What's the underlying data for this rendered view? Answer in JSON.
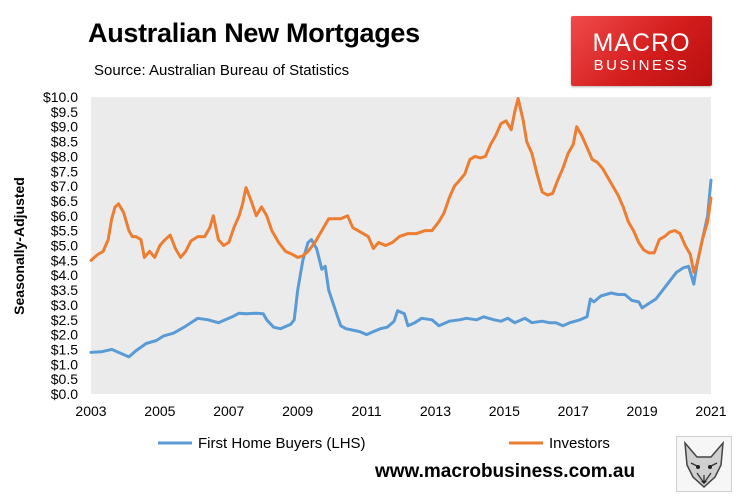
{
  "header": {
    "title": "Australian New Mortgages",
    "subtitle": "Source: Australian Bureau of Statistics"
  },
  "logo": {
    "line1": "MACRO",
    "line2": "BUSINESS",
    "color": "#d82222"
  },
  "footer": {
    "url": "www.macrobusiness.com.au"
  },
  "chart_data": {
    "type": "line",
    "title": "Australian New Mortgages",
    "subtitle": "Source: Australian Bureau of Statistics",
    "ylabel": "Seasonally-Adjusted",
    "xlim": [
      2003,
      2021
    ],
    "ylim": [
      0,
      10
    ],
    "x_ticks": [
      2003,
      2005,
      2007,
      2009,
      2011,
      2013,
      2015,
      2017,
      2019,
      2021
    ],
    "x_tick_labels": [
      "2003",
      "2005",
      "2007",
      "2009",
      "2011",
      "2013",
      "2015",
      "2017",
      "2019",
      "2021"
    ],
    "y_ticks": [
      0,
      0.5,
      1,
      1.5,
      2,
      2.5,
      3,
      3.5,
      4,
      4.5,
      5,
      5.5,
      6,
      6.5,
      7,
      7.5,
      8,
      8.5,
      9,
      9.5,
      10
    ],
    "y_tick_labels": [
      "$0.0",
      "$0.5",
      "$1.0",
      "$1.5",
      "$2.0",
      "$2.5",
      "$3.0",
      "$3.5",
      "$4.0",
      "$4.5",
      "$5.0",
      "$5.5",
      "$6.0",
      "$6.5",
      "$7.0",
      "$7.5",
      "$8.0",
      "$8.5",
      "$9.0",
      "$9.5",
      "$10.0"
    ],
    "grid": false,
    "legend_position": "bottom",
    "background": "#ebebeb",
    "series": [
      {
        "name": "First Home Buyers (LHS)",
        "color": "#5b9bd5",
        "points": [
          [
            2003.0,
            1.4
          ],
          [
            2003.3,
            1.42
          ],
          [
            2003.6,
            1.5
          ],
          [
            2003.8,
            1.4
          ],
          [
            2004.1,
            1.25
          ],
          [
            2004.3,
            1.45
          ],
          [
            2004.6,
            1.7
          ],
          [
            2004.9,
            1.8
          ],
          [
            2005.1,
            1.95
          ],
          [
            2005.4,
            2.05
          ],
          [
            2005.7,
            2.25
          ],
          [
            2005.9,
            2.4
          ],
          [
            2006.1,
            2.55
          ],
          [
            2006.4,
            2.5
          ],
          [
            2006.7,
            2.4
          ],
          [
            2006.9,
            2.5
          ],
          [
            2007.1,
            2.6
          ],
          [
            2007.3,
            2.72
          ],
          [
            2007.5,
            2.7
          ],
          [
            2007.8,
            2.72
          ],
          [
            2008.0,
            2.7
          ],
          [
            2008.1,
            2.5
          ],
          [
            2008.3,
            2.25
          ],
          [
            2008.5,
            2.2
          ],
          [
            2008.8,
            2.35
          ],
          [
            2008.9,
            2.5
          ],
          [
            2009.0,
            3.5
          ],
          [
            2009.15,
            4.5
          ],
          [
            2009.3,
            5.1
          ],
          [
            2009.4,
            5.2
          ],
          [
            2009.55,
            4.9
          ],
          [
            2009.7,
            4.2
          ],
          [
            2009.8,
            4.3
          ],
          [
            2009.9,
            3.5
          ],
          [
            2010.1,
            2.8
          ],
          [
            2010.25,
            2.3
          ],
          [
            2010.4,
            2.2
          ],
          [
            2010.6,
            2.15
          ],
          [
            2010.8,
            2.1
          ],
          [
            2011.0,
            2.0
          ],
          [
            2011.2,
            2.1
          ],
          [
            2011.4,
            2.2
          ],
          [
            2011.6,
            2.25
          ],
          [
            2011.8,
            2.45
          ],
          [
            2011.9,
            2.8
          ],
          [
            2012.1,
            2.7
          ],
          [
            2012.2,
            2.3
          ],
          [
            2012.4,
            2.4
          ],
          [
            2012.6,
            2.55
          ],
          [
            2012.9,
            2.5
          ],
          [
            2013.1,
            2.3
          ],
          [
            2013.4,
            2.45
          ],
          [
            2013.7,
            2.5
          ],
          [
            2013.9,
            2.55
          ],
          [
            2014.2,
            2.5
          ],
          [
            2014.4,
            2.6
          ],
          [
            2014.7,
            2.5
          ],
          [
            2014.9,
            2.45
          ],
          [
            2015.1,
            2.55
          ],
          [
            2015.3,
            2.4
          ],
          [
            2015.5,
            2.5
          ],
          [
            2015.6,
            2.55
          ],
          [
            2015.8,
            2.4
          ],
          [
            2016.1,
            2.45
          ],
          [
            2016.3,
            2.4
          ],
          [
            2016.5,
            2.4
          ],
          [
            2016.7,
            2.3
          ],
          [
            2016.9,
            2.4
          ],
          [
            2017.2,
            2.5
          ],
          [
            2017.4,
            2.6
          ],
          [
            2017.5,
            3.2
          ],
          [
            2017.6,
            3.1
          ],
          [
            2017.8,
            3.3
          ],
          [
            2018.1,
            3.4
          ],
          [
            2018.3,
            3.35
          ],
          [
            2018.5,
            3.35
          ],
          [
            2018.7,
            3.15
          ],
          [
            2018.9,
            3.1
          ],
          [
            2019.0,
            2.9
          ],
          [
            2019.2,
            3.05
          ],
          [
            2019.4,
            3.2
          ],
          [
            2019.6,
            3.5
          ],
          [
            2019.8,
            3.8
          ],
          [
            2020.0,
            4.1
          ],
          [
            2020.2,
            4.25
          ],
          [
            2020.35,
            4.3
          ],
          [
            2020.5,
            3.7
          ],
          [
            2020.6,
            4.4
          ],
          [
            2020.75,
            5.2
          ],
          [
            2020.9,
            6.0
          ],
          [
            2021.0,
            7.2
          ]
        ]
      },
      {
        "name": "Investors",
        "color": "#ed7d31",
        "points": [
          [
            2003.0,
            4.5
          ],
          [
            2003.2,
            4.7
          ],
          [
            2003.35,
            4.8
          ],
          [
            2003.5,
            5.2
          ],
          [
            2003.6,
            5.9
          ],
          [
            2003.7,
            6.3
          ],
          [
            2003.8,
            6.4
          ],
          [
            2003.95,
            6.1
          ],
          [
            2004.1,
            5.5
          ],
          [
            2004.2,
            5.3
          ],
          [
            2004.3,
            5.3
          ],
          [
            2004.45,
            5.2
          ],
          [
            2004.55,
            4.6
          ],
          [
            2004.7,
            4.8
          ],
          [
            2004.85,
            4.6
          ],
          [
            2005.0,
            5.0
          ],
          [
            2005.15,
            5.2
          ],
          [
            2005.3,
            5.35
          ],
          [
            2005.45,
            4.9
          ],
          [
            2005.6,
            4.6
          ],
          [
            2005.75,
            4.8
          ],
          [
            2005.9,
            5.15
          ],
          [
            2006.1,
            5.3
          ],
          [
            2006.3,
            5.3
          ],
          [
            2006.45,
            5.6
          ],
          [
            2006.55,
            6.0
          ],
          [
            2006.7,
            5.2
          ],
          [
            2006.85,
            5.0
          ],
          [
            2007.0,
            5.1
          ],
          [
            2007.15,
            5.6
          ],
          [
            2007.3,
            6.0
          ],
          [
            2007.4,
            6.4
          ],
          [
            2007.5,
            6.95
          ],
          [
            2007.65,
            6.5
          ],
          [
            2007.8,
            6.0
          ],
          [
            2007.95,
            6.3
          ],
          [
            2008.1,
            6.0
          ],
          [
            2008.25,
            5.5
          ],
          [
            2008.45,
            5.1
          ],
          [
            2008.65,
            4.8
          ],
          [
            2008.85,
            4.7
          ],
          [
            2009.0,
            4.6
          ],
          [
            2009.15,
            4.65
          ],
          [
            2009.3,
            4.8
          ],
          [
            2009.5,
            5.1
          ],
          [
            2009.7,
            5.5
          ],
          [
            2009.9,
            5.9
          ],
          [
            2010.1,
            5.9
          ],
          [
            2010.25,
            5.9
          ],
          [
            2010.45,
            6.0
          ],
          [
            2010.6,
            5.6
          ],
          [
            2010.75,
            5.5
          ],
          [
            2010.9,
            5.4
          ],
          [
            2011.05,
            5.3
          ],
          [
            2011.2,
            4.9
          ],
          [
            2011.35,
            5.1
          ],
          [
            2011.55,
            5.0
          ],
          [
            2011.75,
            5.1
          ],
          [
            2011.95,
            5.3
          ],
          [
            2012.2,
            5.4
          ],
          [
            2012.45,
            5.4
          ],
          [
            2012.7,
            5.5
          ],
          [
            2012.9,
            5.5
          ],
          [
            2013.1,
            5.8
          ],
          [
            2013.25,
            6.1
          ],
          [
            2013.4,
            6.6
          ],
          [
            2013.55,
            7.0
          ],
          [
            2013.7,
            7.2
          ],
          [
            2013.85,
            7.4
          ],
          [
            2014.0,
            7.9
          ],
          [
            2014.15,
            8.0
          ],
          [
            2014.3,
            7.95
          ],
          [
            2014.45,
            8.0
          ],
          [
            2014.6,
            8.4
          ],
          [
            2014.75,
            8.7
          ],
          [
            2014.9,
            9.1
          ],
          [
            2015.05,
            9.2
          ],
          [
            2015.2,
            8.9
          ],
          [
            2015.3,
            9.5
          ],
          [
            2015.4,
            9.95
          ],
          [
            2015.55,
            9.2
          ],
          [
            2015.65,
            8.5
          ],
          [
            2015.8,
            8.1
          ],
          [
            2015.95,
            7.4
          ],
          [
            2016.1,
            6.8
          ],
          [
            2016.25,
            6.7
          ],
          [
            2016.4,
            6.75
          ],
          [
            2016.55,
            7.2
          ],
          [
            2016.7,
            7.6
          ],
          [
            2016.85,
            8.1
          ],
          [
            2017.0,
            8.4
          ],
          [
            2017.1,
            9.0
          ],
          [
            2017.25,
            8.7
          ],
          [
            2017.4,
            8.3
          ],
          [
            2017.55,
            7.9
          ],
          [
            2017.7,
            7.8
          ],
          [
            2017.85,
            7.6
          ],
          [
            2018.0,
            7.3
          ],
          [
            2018.15,
            7.0
          ],
          [
            2018.3,
            6.7
          ],
          [
            2018.45,
            6.3
          ],
          [
            2018.6,
            5.8
          ],
          [
            2018.75,
            5.5
          ],
          [
            2018.9,
            5.1
          ],
          [
            2019.05,
            4.85
          ],
          [
            2019.2,
            4.75
          ],
          [
            2019.35,
            4.75
          ],
          [
            2019.5,
            5.2
          ],
          [
            2019.65,
            5.3
          ],
          [
            2019.8,
            5.45
          ],
          [
            2019.95,
            5.5
          ],
          [
            2020.1,
            5.4
          ],
          [
            2020.25,
            5.0
          ],
          [
            2020.4,
            4.7
          ],
          [
            2020.5,
            4.1
          ],
          [
            2020.6,
            4.4
          ],
          [
            2020.75,
            5.2
          ],
          [
            2020.9,
            5.8
          ],
          [
            2021.0,
            6.6
          ]
        ]
      }
    ]
  }
}
